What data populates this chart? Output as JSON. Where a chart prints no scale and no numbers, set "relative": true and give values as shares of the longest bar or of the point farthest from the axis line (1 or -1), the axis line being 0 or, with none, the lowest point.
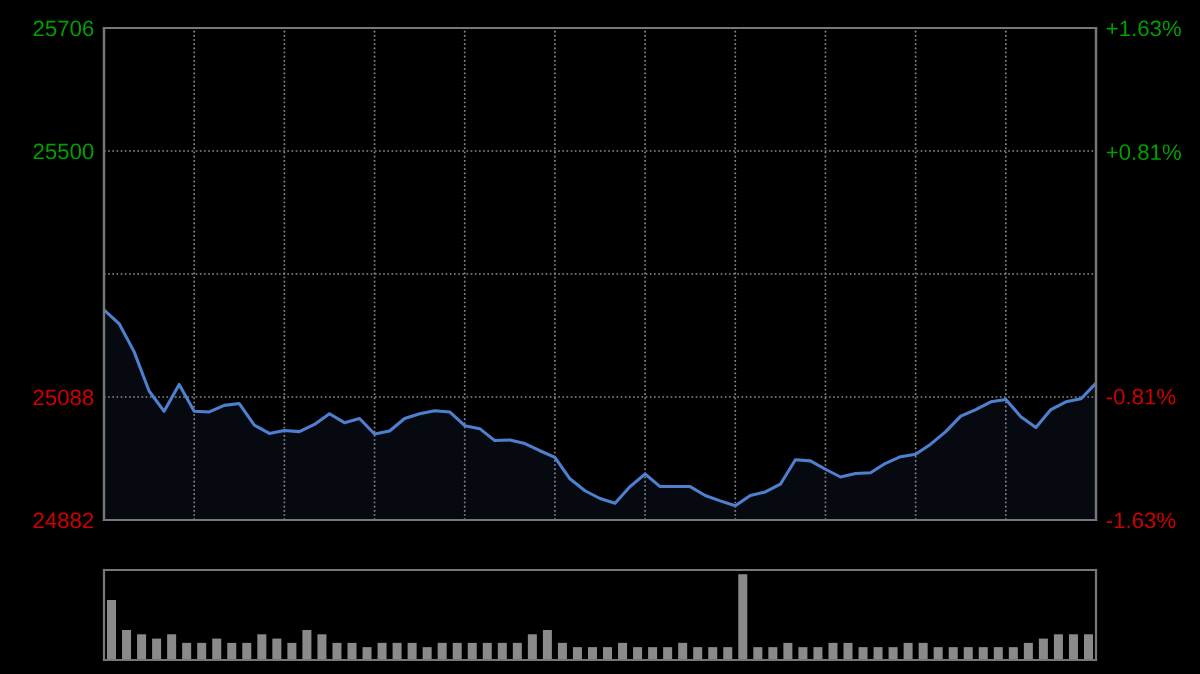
{
  "chart_data": [
    {
      "type": "area",
      "categories": [
        null,
        null,
        null,
        null,
        null,
        null,
        null,
        null,
        null,
        null,
        null,
        null,
        null,
        null,
        null,
        null,
        null,
        null,
        null,
        null,
        null,
        null,
        null,
        null,
        null,
        null,
        null,
        null,
        null,
        null,
        null,
        null,
        null,
        null,
        null,
        null,
        null,
        null,
        null,
        null,
        null,
        null,
        null,
        null,
        null,
        null,
        null,
        null,
        null,
        null,
        null,
        null,
        null,
        null,
        null,
        null,
        null,
        null,
        null,
        null,
        null,
        null,
        null,
        null,
        null,
        null,
        null
      ],
      "series": [
        {
          "color": "#4f80d0",
          "values": [
            25234,
            25211,
            25164,
            25098,
            25064,
            25109,
            25064,
            25063,
            25074,
            25077,
            25041,
            25027,
            25032,
            25030,
            25042,
            25060,
            25045,
            25052,
            25026,
            25031,
            25052,
            25060,
            25065,
            25063,
            25040,
            25035,
            25015,
            25016,
            25010,
            24998,
            24987,
            24951,
            24931,
            24918,
            24910,
            24938,
            24959,
            24938,
            24938,
            24938,
            24923,
            24914,
            24906,
            24923,
            24929,
            24942,
            24983,
            24981,
            24967,
            24954,
            24960,
            24961,
            24977,
            24988,
            24992,
            25009,
            25030,
            25056,
            25067,
            25080,
            25084,
            25055,
            25037,
            25067,
            25080,
            25085,
            25111
          ]
        }
      ],
      "ylim": [
        24882,
        25706
      ],
      "yticks": [
        24882,
        25088,
        {
          "value": 25294,
          "label": null
        },
        25500,
        25706
      ],
      "y2lim": [
        -1.63,
        1.63
      ],
      "y2ticks": [
        {
          "value": -1.63,
          "label": "-1.63%"
        },
        {
          "value": -0.81,
          "label": "-0.81%"
        },
        {
          "value": 0.81,
          "label": "+0.81%"
        },
        {
          "value": 1.63,
          "label": "+1.63%"
        }
      ],
      "grid": true
    },
    {
      "type": "bar",
      "relative": true,
      "categories": [
        null,
        null,
        null,
        null,
        null,
        null,
        null,
        null,
        null,
        null,
        null,
        null,
        null,
        null,
        null,
        null,
        null,
        null,
        null,
        null,
        null,
        null,
        null,
        null,
        null,
        null,
        null,
        null,
        null,
        null,
        null,
        null,
        null,
        null,
        null,
        null,
        null,
        null,
        null,
        null,
        null,
        null,
        null,
        null,
        null,
        null,
        null,
        null,
        null,
        null,
        null,
        null,
        null,
        null,
        null,
        null,
        null,
        null,
        null,
        null,
        null,
        null,
        null,
        null,
        null,
        null
      ],
      "color": "#8a8a8a",
      "values": [
        0.7,
        0.35,
        0.3,
        0.25,
        0.3,
        0.2,
        0.2,
        0.25,
        0.2,
        0.2,
        0.3,
        0.25,
        0.2,
        0.35,
        0.3,
        0.2,
        0.2,
        0.15,
        0.2,
        0.2,
        0.2,
        0.15,
        0.2,
        0.2,
        0.2,
        0.2,
        0.2,
        0.2,
        0.3,
        0.35,
        0.2,
        0.15,
        0.15,
        0.15,
        0.2,
        0.15,
        0.15,
        0.15,
        0.2,
        0.15,
        0.15,
        0.15,
        1.0,
        0.15,
        0.15,
        0.2,
        0.15,
        0.15,
        0.2,
        0.2,
        0.15,
        0.15,
        0.15,
        0.2,
        0.2,
        0.15,
        0.15,
        0.15,
        0.15,
        0.15,
        0.15,
        0.2,
        0.25,
        0.3,
        0.3,
        0.3
      ]
    }
  ]
}
